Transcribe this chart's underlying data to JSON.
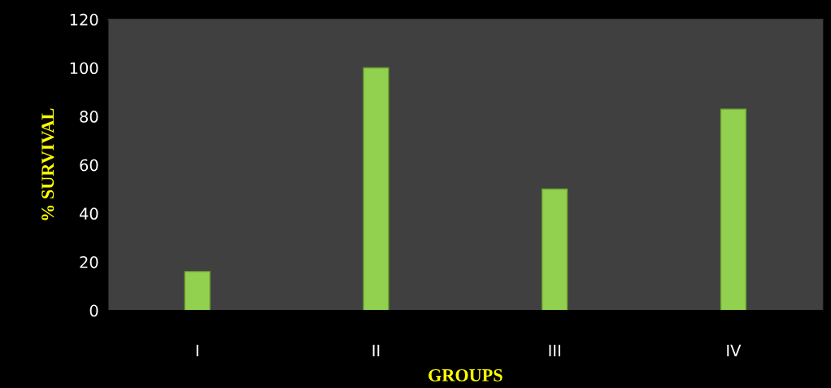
{
  "chart_data": {
    "type": "bar",
    "xlabel": "GROUPS",
    "ylabel": "% SURVIVAL",
    "categories": [
      "I",
      "II",
      "III",
      "IV"
    ],
    "values": [
      16,
      100,
      50,
      83
    ],
    "color": "#92d050",
    "ylim": [
      0,
      120
    ],
    "yticks": [
      0,
      20,
      40,
      60,
      80,
      100,
      120
    ],
    "grid": false,
    "legend": false
  }
}
